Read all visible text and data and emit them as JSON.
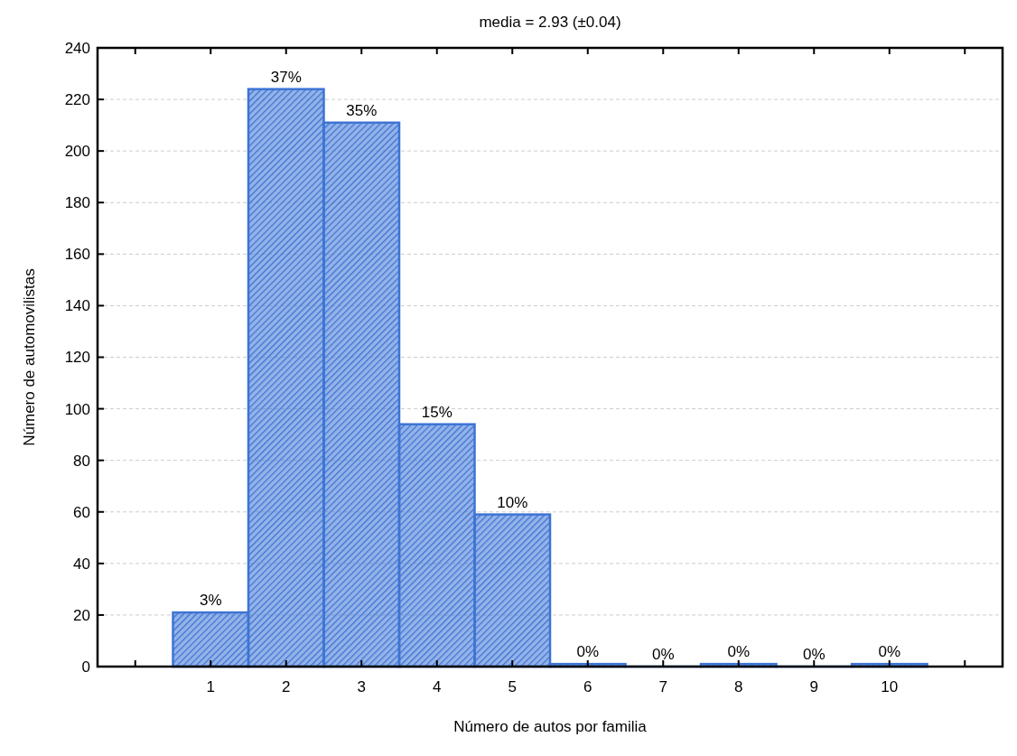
{
  "chart_data": {
    "type": "bar",
    "title": "media = 2.93 (±0.04)",
    "xlabel": "Número de autos por familia",
    "ylabel": "Número de automovilistas",
    "categories": [
      null,
      "1",
      "2",
      "3",
      "4",
      "5",
      "6",
      "7",
      "8",
      "9",
      "10",
      null
    ],
    "values": [
      null,
      21,
      224,
      211,
      94,
      59,
      1,
      0,
      1,
      0,
      1,
      null
    ],
    "annotations": [
      {
        "text": "3%",
        "x": "1",
        "y": 21
      },
      {
        "text": "37%",
        "x": "2",
        "y": 224
      },
      {
        "text": "35%",
        "x": "3",
        "y": 211
      },
      {
        "text": "15%",
        "x": "4",
        "y": 94
      },
      {
        "text": "10%",
        "x": "5",
        "y": 59
      },
      {
        "text": "0%",
        "x": "6",
        "y": 1
      },
      {
        "text": "0%",
        "x": "7",
        "y": 0
      },
      {
        "text": "0%",
        "x": "8",
        "y": 1
      },
      {
        "text": "0%",
        "x": "9",
        "y": 0
      },
      {
        "text": "0%",
        "x": "10",
        "y": 1
      }
    ],
    "color": "#3d74d4",
    "ylim": [
      0,
      240
    ],
    "yticks": [
      0,
      20,
      40,
      60,
      80,
      100,
      120,
      140,
      160,
      180,
      200,
      220,
      240
    ],
    "grid": "y"
  }
}
